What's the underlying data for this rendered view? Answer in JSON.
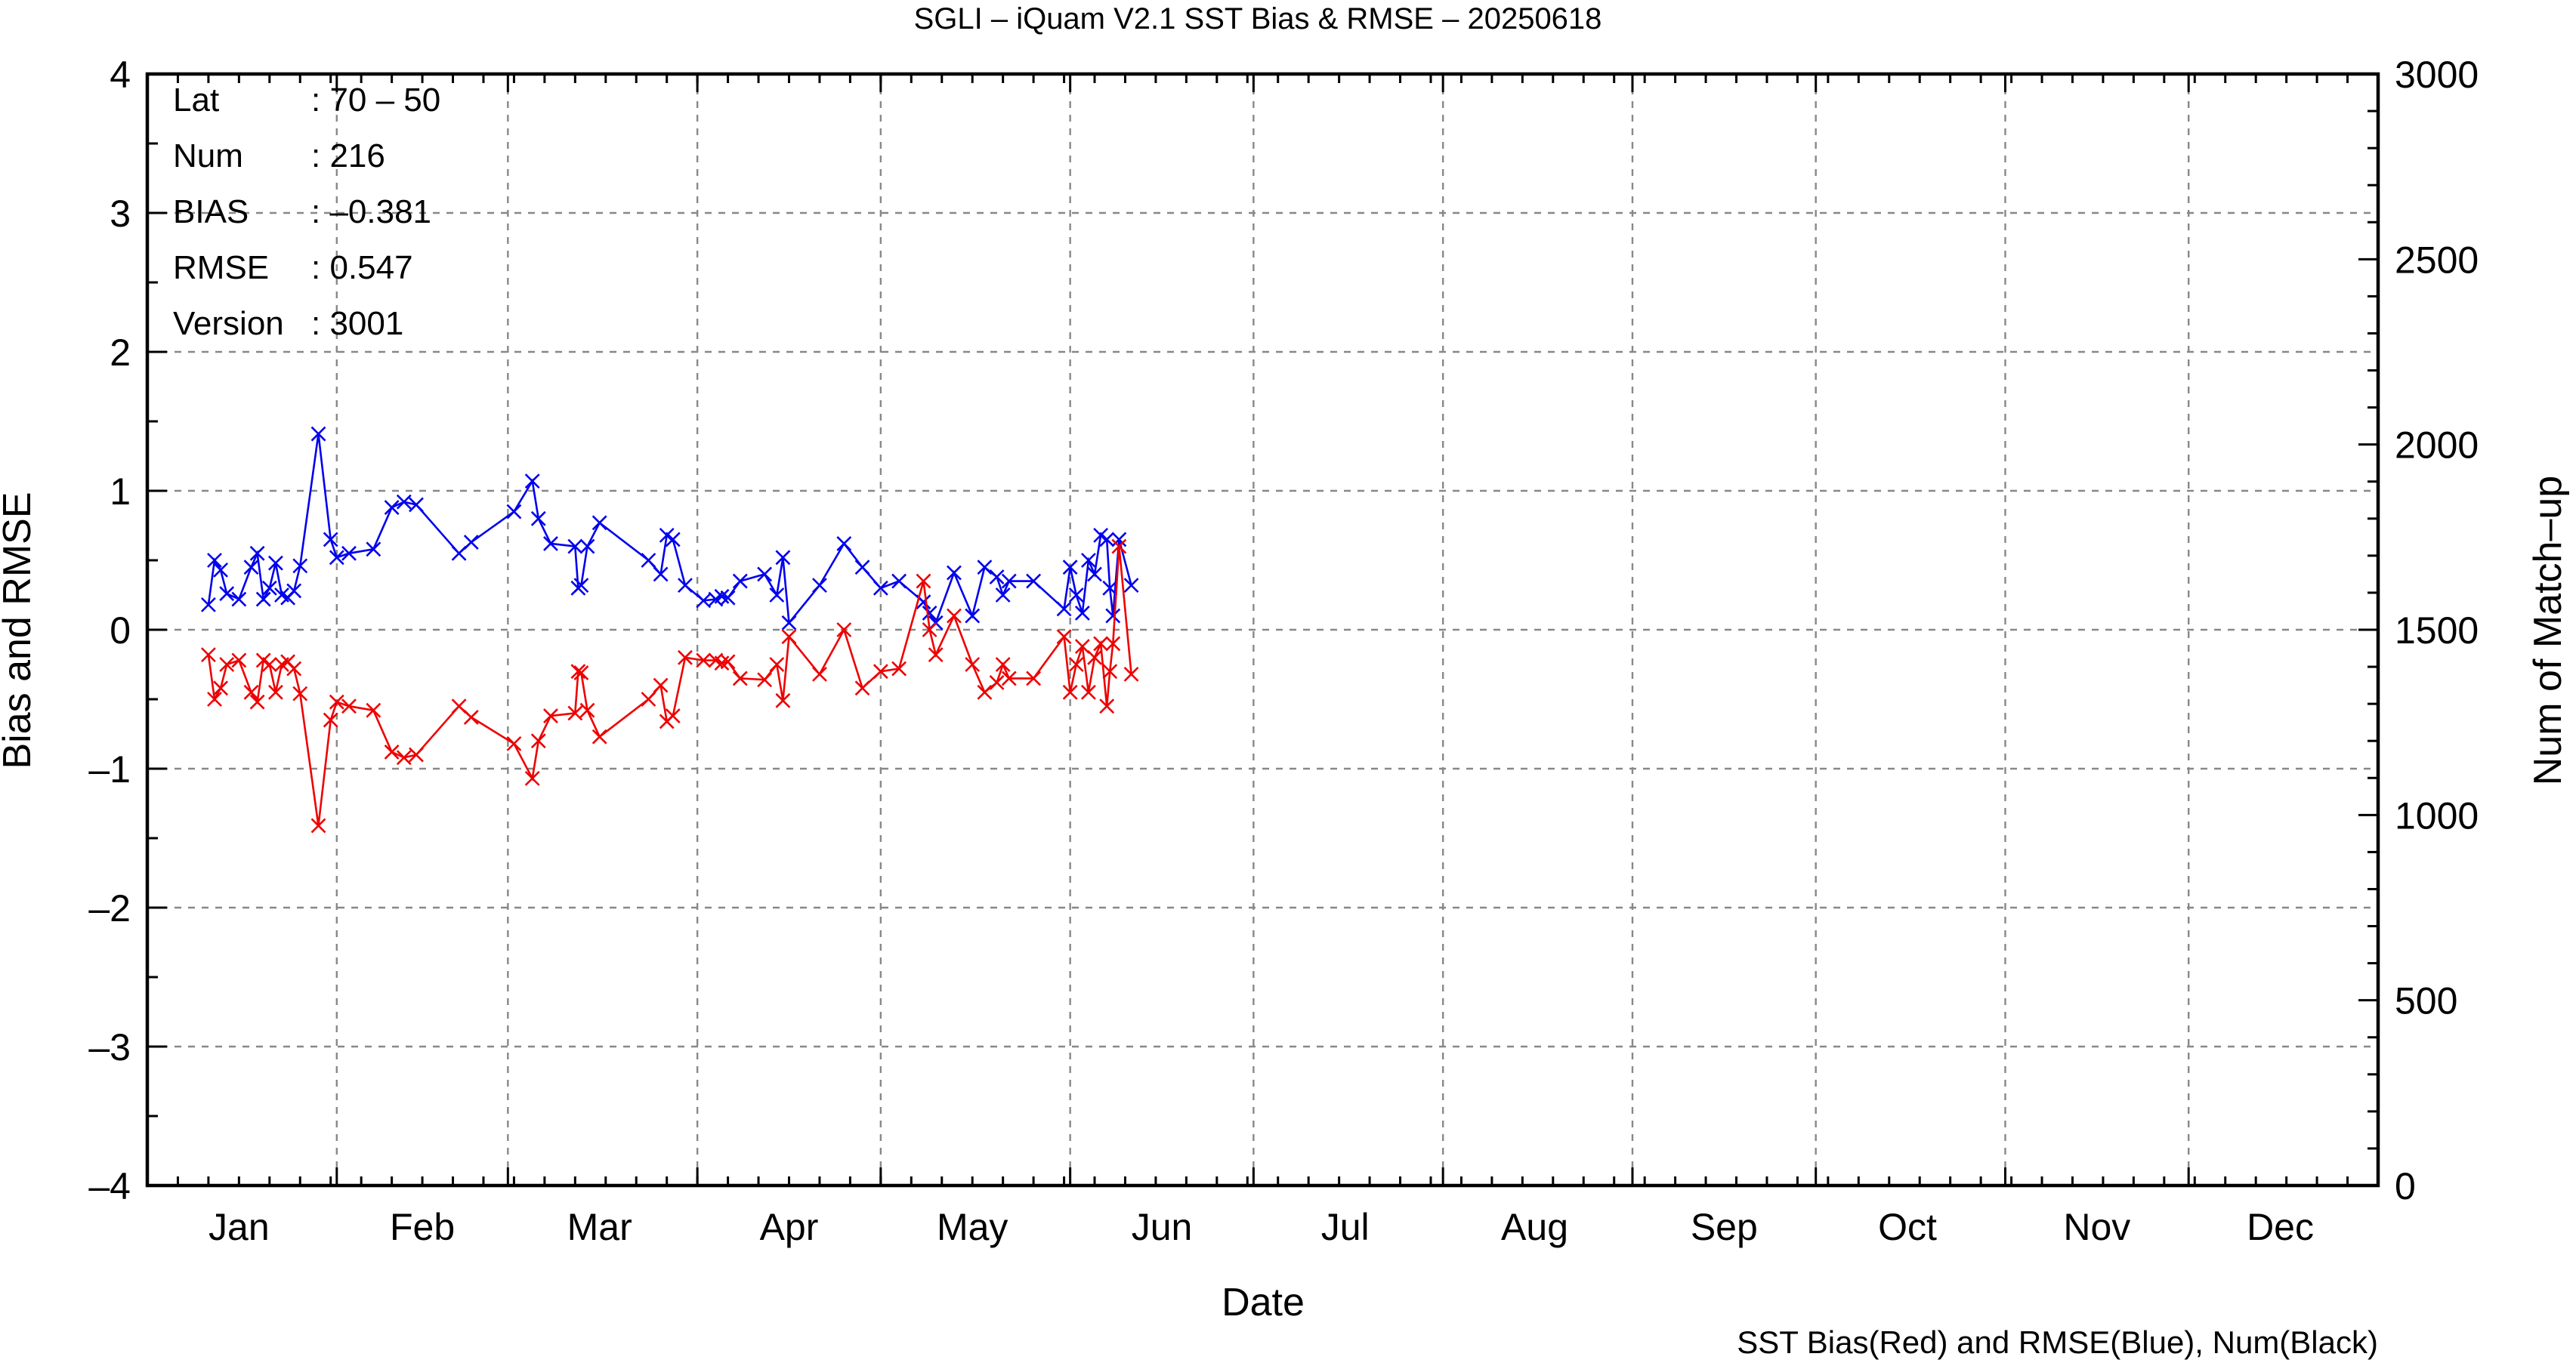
{
  "chart_data": {
    "type": "line",
    "title": "SGLI – iQuam V2.1 SST Bias & RMSE  – 20250618",
    "xlabel": "Date",
    "ylabel": "Bias and RMSE",
    "y2label": "Num of Match–up",
    "legend_note": "SST Bias(Red) and RMSE(Blue), Num(Black)",
    "ylim": [
      -4,
      4
    ],
    "y2lim": [
      0,
      3000
    ],
    "xlim": [
      0,
      365
    ],
    "yticks": [
      -4,
      -3,
      -2,
      -1,
      0,
      1,
      2,
      3,
      4
    ],
    "ytick_labels": [
      "–4",
      "–3",
      "–2",
      "–1",
      "0",
      "1",
      "2",
      "3",
      "4"
    ],
    "y2ticks": [
      0,
      500,
      1000,
      1500,
      2000,
      2500,
      3000
    ],
    "y2tick_labels": [
      "0",
      "500",
      "1000",
      "1500",
      "2000",
      "2500",
      "3000"
    ],
    "month_labels": [
      "Jan",
      "Feb",
      "Mar",
      "Apr",
      "May",
      "Jun",
      "Jul",
      "Aug",
      "Sep",
      "Oct",
      "Nov",
      "Dec"
    ],
    "month_label_days": [
      15,
      45,
      74,
      105,
      135,
      166,
      196,
      227,
      258,
      288,
      319,
      349
    ],
    "month_boundaries": [
      0,
      31,
      59,
      90,
      120,
      151,
      181,
      212,
      243,
      273,
      304,
      334,
      365
    ],
    "grid": true,
    "info": [
      {
        "key": "Lat",
        "value": ": 70 – 50"
      },
      {
        "key": "Num",
        "value": ": 216"
      },
      {
        "key": "BIAS",
        "value": ": –0.381"
      },
      {
        "key": "RMSE",
        "value": ": 0.547"
      },
      {
        "key": "Version",
        "value": ": 3001"
      }
    ],
    "series": [
      {
        "name": "RMSE",
        "color": "#0000ee",
        "x": [
          10,
          11,
          12,
          13,
          15,
          17,
          18,
          19,
          20,
          21,
          22,
          23,
          24,
          25,
          28,
          30,
          31,
          33,
          37,
          40,
          42,
          44,
          51,
          53,
          60,
          63,
          64,
          66,
          70,
          70.5,
          71,
          72,
          74,
          82,
          84,
          85,
          86,
          88,
          91,
          93,
          94,
          95,
          97,
          101,
          103,
          104,
          105,
          110,
          114,
          117,
          120,
          123,
          127,
          128,
          129,
          132,
          135,
          137,
          139,
          140,
          141,
          145,
          150,
          151,
          152,
          153,
          154,
          155,
          156,
          157,
          157.5,
          158,
          159,
          161
        ],
        "y": [
          0.18,
          0.5,
          0.43,
          0.26,
          0.22,
          0.45,
          0.55,
          0.22,
          0.3,
          0.48,
          0.25,
          0.23,
          0.28,
          0.46,
          1.41,
          0.65,
          0.52,
          0.55,
          0.58,
          0.88,
          0.92,
          0.9,
          0.55,
          0.63,
          0.85,
          1.07,
          0.8,
          0.62,
          0.6,
          0.3,
          0.32,
          0.6,
          0.77,
          0.5,
          0.4,
          0.68,
          0.65,
          0.32,
          0.21,
          0.22,
          0.24,
          0.23,
          0.35,
          0.4,
          0.25,
          0.52,
          0.05,
          0.32,
          0.62,
          0.45,
          0.3,
          0.35,
          0.2,
          0.12,
          0.05,
          0.41,
          0.1,
          0.45,
          0.38,
          0.25,
          0.35,
          0.35,
          0.15,
          0.45,
          0.25,
          0.12,
          0.5,
          0.4,
          0.68,
          0.65,
          0.3,
          0.1,
          0.65,
          0.32
        ]
      },
      {
        "name": "BIAS",
        "color": "#ee0000",
        "x": [
          10,
          11,
          12,
          13,
          15,
          17,
          18,
          19,
          20,
          21,
          22,
          23,
          24,
          25,
          28,
          30,
          31,
          33,
          37,
          40,
          42,
          44,
          51,
          53,
          60,
          63,
          64,
          66,
          70,
          70.5,
          71,
          72,
          74,
          82,
          84,
          85,
          86,
          88,
          91,
          93,
          94,
          95,
          97,
          101,
          103,
          104,
          105,
          110,
          114,
          117,
          120,
          123,
          127,
          128,
          129,
          132,
          135,
          137,
          139,
          140,
          141,
          145,
          150,
          151,
          152,
          153,
          154,
          155,
          156,
          157,
          157.5,
          158,
          159,
          161
        ],
        "y": [
          -0.18,
          -0.5,
          -0.42,
          -0.25,
          -0.22,
          -0.45,
          -0.52,
          -0.22,
          -0.25,
          -0.45,
          -0.25,
          -0.23,
          -0.28,
          -0.46,
          -1.41,
          -0.65,
          -0.52,
          -0.55,
          -0.58,
          -0.88,
          -0.92,
          -0.9,
          -0.55,
          -0.63,
          -0.82,
          -1.07,
          -0.8,
          -0.62,
          -0.6,
          -0.3,
          -0.31,
          -0.58,
          -0.77,
          -0.5,
          -0.4,
          -0.66,
          -0.62,
          -0.2,
          -0.22,
          -0.22,
          -0.24,
          -0.23,
          -0.35,
          -0.36,
          -0.25,
          -0.51,
          -0.05,
          -0.32,
          -0.0,
          -0.42,
          -0.3,
          -0.28,
          0.35,
          0.0,
          -0.18,
          0.1,
          -0.25,
          -0.45,
          -0.38,
          -0.25,
          -0.35,
          -0.35,
          -0.05,
          -0.45,
          -0.25,
          -0.12,
          -0.45,
          -0.2,
          -0.1,
          -0.55,
          -0.3,
          -0.1,
          0.6,
          -0.32
        ]
      }
    ]
  }
}
